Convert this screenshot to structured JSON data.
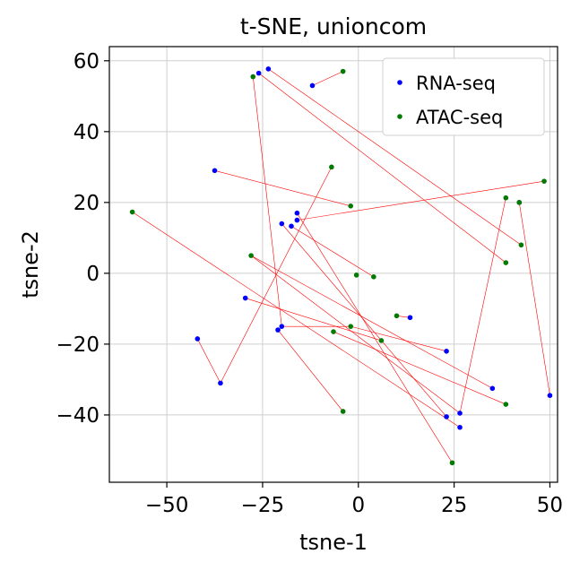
{
  "chart_data": {
    "type": "scatter",
    "title": "t-SNE, unioncom",
    "xlabel": "tsne-1",
    "ylabel": "tsne-2",
    "xlim": [
      -65,
      52
    ],
    "ylim": [
      -59,
      64
    ],
    "xticks": [
      -50,
      -25,
      0,
      25,
      50
    ],
    "yticks": [
      -40,
      -20,
      0,
      20,
      40,
      60
    ],
    "xtick_labels": [
      "−50",
      "−25",
      "0",
      "25",
      "50"
    ],
    "ytick_labels": [
      "−40",
      "−20",
      "0",
      "20",
      "40",
      "60"
    ],
    "grid": true,
    "legend_position": "top-right",
    "series": [
      {
        "name": "RNA-seq",
        "color": "#0000ff",
        "points": [
          [
            -26,
            56.5
          ],
          [
            -23.5,
            57.7
          ],
          [
            -12,
            53
          ],
          [
            -37.5,
            29
          ],
          [
            -20,
            14
          ],
          [
            -16,
            17
          ],
          [
            -16,
            15
          ],
          [
            -17.5,
            13.3
          ],
          [
            -29.5,
            -7
          ],
          [
            -20,
            -15
          ],
          [
            -21,
            -16
          ],
          [
            -42,
            -18.5
          ],
          [
            13.5,
            -12.5
          ],
          [
            23,
            -22
          ],
          [
            35,
            -32.5
          ],
          [
            -36,
            -31
          ],
          [
            23,
            -40.5
          ],
          [
            26.5,
            -39.5
          ],
          [
            26.5,
            -43.5
          ],
          [
            50,
            -34.5
          ],
          [
            42,
            20
          ]
        ]
      },
      {
        "name": "ATAC-seq",
        "color": "#007a00",
        "points": [
          [
            -27.5,
            55.5
          ],
          [
            -4,
            57
          ],
          [
            -7,
            30
          ],
          [
            -2,
            19
          ],
          [
            -59,
            17.3
          ],
          [
            -28,
            5
          ],
          [
            -0.5,
            -0.5
          ],
          [
            4,
            -1
          ],
          [
            10,
            -12
          ],
          [
            -2,
            -15
          ],
          [
            -6.5,
            -16.5
          ],
          [
            6,
            -19
          ],
          [
            -4,
            -39
          ],
          [
            24.5,
            -53.5
          ],
          [
            38.5,
            -37
          ],
          [
            38.5,
            3
          ],
          [
            42.5,
            8
          ],
          [
            38.5,
            21.3
          ],
          [
            42,
            20
          ],
          [
            48.5,
            26
          ]
        ]
      }
    ],
    "links": [
      [
        -23.5,
        57.7,
        42.5,
        8
      ],
      [
        -26,
        56.5,
        38.5,
        3
      ],
      [
        -27.5,
        55.5,
        -20,
        -15
      ],
      [
        -12,
        53,
        -4,
        57
      ],
      [
        -37.5,
        29,
        -2,
        19
      ],
      [
        -42,
        -18.5,
        -36,
        -31
      ],
      [
        -16,
        15,
        48.5,
        26
      ],
      [
        -17.5,
        13.3,
        4,
        -1
      ],
      [
        -16,
        17,
        24.5,
        -53.5
      ],
      [
        -28,
        5,
        35,
        -32.5
      ],
      [
        -28,
        5,
        26.5,
        -39.5
      ],
      [
        -59,
        17.3,
        26.5,
        -43.5
      ],
      [
        -36,
        -31,
        -7,
        30
      ],
      [
        -29.5,
        -7,
        6,
        -19
      ],
      [
        -21,
        -16,
        -4,
        -39
      ],
      [
        -20,
        14,
        23,
        -40.5
      ],
      [
        -6.5,
        -16.5,
        38.5,
        -37
      ],
      [
        -2,
        -15,
        23,
        -22
      ],
      [
        10,
        -12,
        13.5,
        -12.5
      ],
      [
        -20,
        -15,
        -2,
        -15
      ],
      [
        42,
        20,
        50,
        -34.5
      ],
      [
        26.5,
        -39.5,
        38.5,
        21.3
      ]
    ]
  }
}
